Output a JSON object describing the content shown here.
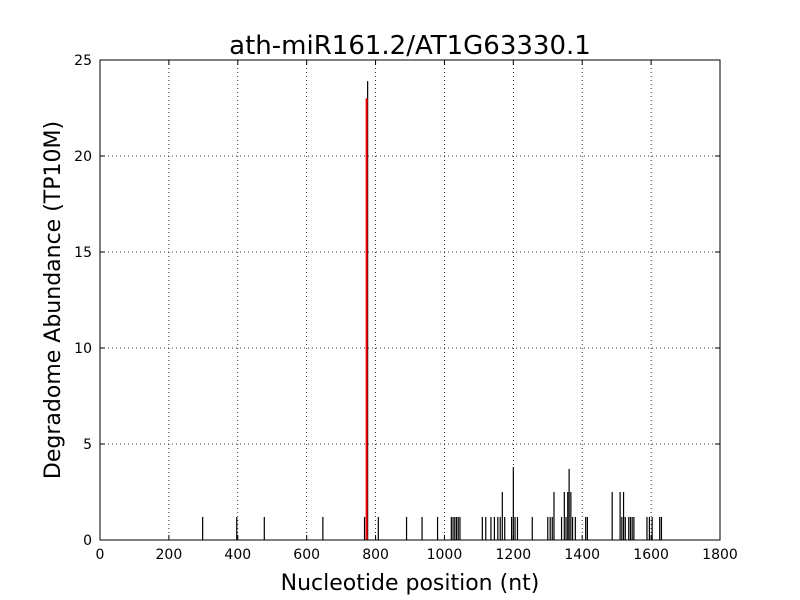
{
  "chart_data": {
    "type": "bar",
    "title": "ath-miR161.2/AT1G63330.1",
    "xlabel": "Nucleotide position (nt)",
    "ylabel": "Degradome Abundance (TP10M)",
    "xlim": [
      0,
      1800
    ],
    "ylim": [
      0,
      25
    ],
    "xticks": [
      0,
      200,
      400,
      600,
      800,
      1000,
      1200,
      1400,
      1600,
      1800
    ],
    "yticks": [
      0,
      5,
      10,
      15,
      20,
      25
    ],
    "grid": true,
    "series": [
      {
        "color": "#000000",
        "points": [
          {
            "x": 298,
            "y": 1.2
          },
          {
            "x": 397,
            "y": 1.2
          },
          {
            "x": 477,
            "y": 1.2
          },
          {
            "x": 647,
            "y": 1.2
          },
          {
            "x": 768,
            "y": 1.2
          },
          {
            "x": 777,
            "y": 23.9
          },
          {
            "x": 808,
            "y": 1.2
          },
          {
            "x": 890,
            "y": 1.2
          },
          {
            "x": 935,
            "y": 1.2
          },
          {
            "x": 980,
            "y": 1.2
          },
          {
            "x": 1020,
            "y": 1.2
          },
          {
            "x": 1025,
            "y": 1.2
          },
          {
            "x": 1030,
            "y": 1.2
          },
          {
            "x": 1035,
            "y": 1.2
          },
          {
            "x": 1040,
            "y": 1.2
          },
          {
            "x": 1045,
            "y": 1.2
          },
          {
            "x": 1110,
            "y": 1.2
          },
          {
            "x": 1120,
            "y": 1.2
          },
          {
            "x": 1135,
            "y": 1.2
          },
          {
            "x": 1145,
            "y": 1.2
          },
          {
            "x": 1155,
            "y": 1.2
          },
          {
            "x": 1162,
            "y": 1.2
          },
          {
            "x": 1168,
            "y": 2.5
          },
          {
            "x": 1175,
            "y": 1.2
          },
          {
            "x": 1195,
            "y": 1.2
          },
          {
            "x": 1200,
            "y": 3.8
          },
          {
            "x": 1205,
            "y": 1.2
          },
          {
            "x": 1212,
            "y": 1.2
          },
          {
            "x": 1255,
            "y": 1.2
          },
          {
            "x": 1300,
            "y": 1.2
          },
          {
            "x": 1307,
            "y": 1.2
          },
          {
            "x": 1313,
            "y": 1.2
          },
          {
            "x": 1318,
            "y": 2.5
          },
          {
            "x": 1340,
            "y": 1.2
          },
          {
            "x": 1348,
            "y": 2.5
          },
          {
            "x": 1353,
            "y": 1.2
          },
          {
            "x": 1358,
            "y": 2.5
          },
          {
            "x": 1362,
            "y": 3.7
          },
          {
            "x": 1367,
            "y": 2.5
          },
          {
            "x": 1372,
            "y": 1.2
          },
          {
            "x": 1380,
            "y": 1.2
          },
          {
            "x": 1410,
            "y": 1.2
          },
          {
            "x": 1415,
            "y": 1.2
          },
          {
            "x": 1487,
            "y": 2.5
          },
          {
            "x": 1510,
            "y": 2.5
          },
          {
            "x": 1515,
            "y": 1.2
          },
          {
            "x": 1520,
            "y": 2.5
          },
          {
            "x": 1525,
            "y": 1.2
          },
          {
            "x": 1535,
            "y": 1.2
          },
          {
            "x": 1540,
            "y": 1.2
          },
          {
            "x": 1545,
            "y": 1.2
          },
          {
            "x": 1550,
            "y": 1.2
          },
          {
            "x": 1588,
            "y": 1.2
          },
          {
            "x": 1595,
            "y": 1.2
          },
          {
            "x": 1603,
            "y": 1.2
          },
          {
            "x": 1625,
            "y": 1.2
          },
          {
            "x": 1630,
            "y": 1.2
          }
        ]
      },
      {
        "color": "#ff0000",
        "points": [
          {
            "x": 774,
            "y": 23.0
          }
        ]
      }
    ]
  }
}
